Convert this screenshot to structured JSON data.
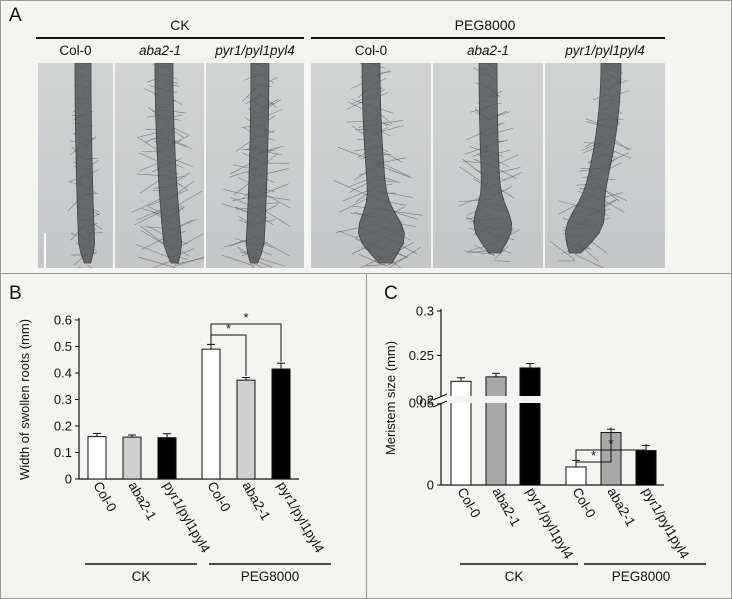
{
  "panel_a": {
    "letter": "A",
    "groups": [
      {
        "label": "CK",
        "photos": [
          {
            "label": "Col-0",
            "italic": false
          },
          {
            "label": "aba2-1",
            "italic": true
          },
          {
            "label": "pyr1/pyl1pyl4",
            "italic": true
          }
        ]
      },
      {
        "label": "PEG8000",
        "photos": [
          {
            "label": "Col-0",
            "italic": false
          },
          {
            "label": "aba2-1",
            "italic": true
          },
          {
            "label": "pyr1/pyl1pyl4",
            "italic": true
          }
        ]
      }
    ]
  },
  "chart_data": [
    {
      "panel": "B",
      "type": "bar",
      "ylabel": "Width of swollen roots (mm)",
      "ylim": [
        0,
        0.6
      ],
      "yticks": [
        "0",
        "0.1",
        "0.2",
        "0.3",
        "0.4",
        "0.5",
        "0.6"
      ],
      "categories": [
        "Col-0",
        "aba2-1",
        "pyr1/pyl1pyl4",
        "Col-0",
        "aba2-1",
        "pyr1/pyl1pyl4"
      ],
      "values": [
        0.16,
        0.158,
        0.156,
        0.49,
        0.373,
        0.415
      ],
      "errors": [
        0.012,
        0.008,
        0.015,
        0.018,
        0.01,
        0.022
      ],
      "colors": [
        "#ffffff",
        "#cfcfcf",
        "#000000",
        "#ffffff",
        "#cfcfcf",
        "#000000"
      ],
      "groups": [
        {
          "label": "CK",
          "indices": [
            0,
            1,
            2
          ]
        },
        {
          "label": "PEG8000",
          "indices": [
            3,
            4,
            5
          ]
        }
      ],
      "significance": [
        {
          "from": 3,
          "to": 4,
          "label": "*"
        },
        {
          "from": 3,
          "to": 5,
          "label": "*"
        }
      ]
    },
    {
      "panel": "C",
      "type": "bar",
      "ylabel": "Meristem size (mm)",
      "yticks": [
        "0",
        "0.05",
        "0.2",
        "0.25",
        "0.3"
      ],
      "axis_break": [
        0.05,
        0.2
      ],
      "categories": [
        "Col-0",
        "aba2-1",
        "pyr1/pyl1pyl4",
        "Col-0",
        "aba2-1",
        "pyr1/pyl1pyl4"
      ],
      "values": [
        0.221,
        0.226,
        0.236,
        0.011,
        0.032,
        0.021
      ],
      "errors": [
        0.004,
        0.004,
        0.005,
        0.004,
        0.002,
        0.003
      ],
      "colors": [
        "#ffffff",
        "#a9a9a9",
        "#000000",
        "#ffffff",
        "#a9a9a9",
        "#000000"
      ],
      "groups": [
        {
          "label": "CK",
          "indices": [
            0,
            1,
            2
          ]
        },
        {
          "label": "PEG8000",
          "indices": [
            3,
            4,
            5
          ]
        }
      ],
      "significance": [
        {
          "from": 3,
          "to": 4,
          "label": "*"
        },
        {
          "from": 3,
          "to": 5,
          "label": "*"
        }
      ]
    }
  ]
}
